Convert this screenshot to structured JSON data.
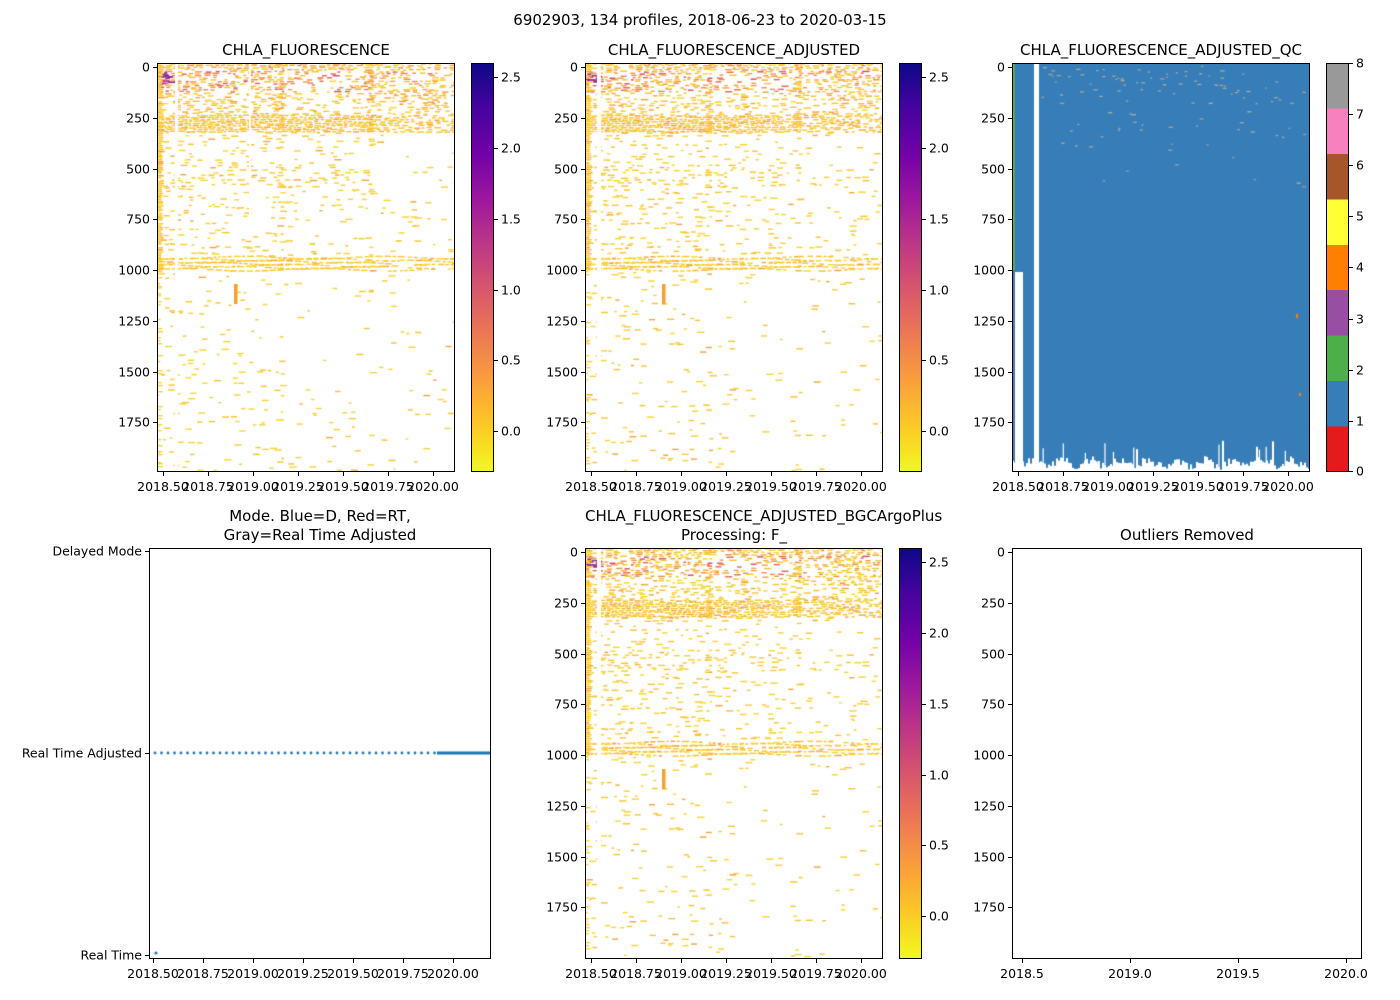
{
  "figure": {
    "suptitle": "6902903, 134 profiles, 2018-06-23 to 2020-03-15",
    "background": "#ffffff"
  },
  "palette": {
    "plasma_r_stops": [
      "#0d0887",
      "#46039f",
      "#7201a8",
      "#9c179e",
      "#bd3786",
      "#d8576b",
      "#ed7953",
      "#fb9f3a",
      "#fdc926",
      "#f0f921"
    ],
    "qc_colors": [
      "#e41a1c",
      "#377eb8",
      "#4daf4a",
      "#984ea3",
      "#ff7f00",
      "#ffff33",
      "#a65628",
      "#f781bf",
      "#999999"
    ],
    "scatter_yellow": "#fdd22f",
    "scatter_amber": "#fcc32b",
    "scatter_orange": "#f7a23a",
    "scatter_red": "#e2654f",
    "scatter_magenta": "#b23387",
    "qc_fill": "#377eb8",
    "qc_first_profile": "#4daf4a",
    "qc_speck": "#a3a39e",
    "mode_line": "#1f77b4"
  },
  "panels": {
    "fluorescence": {
      "title": "CHLA_FLUORESCENCE",
      "xticks": [
        "2018.50",
        "2018.75",
        "2019.00",
        "2019.25",
        "2019.50",
        "2019.75",
        "2020.00"
      ],
      "yticks": [
        "0",
        "250",
        "500",
        "750",
        "1000",
        "1250",
        "1500",
        "1750"
      ],
      "colorbar_ticks": [
        "2.5",
        "2.0",
        "1.5",
        "1.0",
        "0.5",
        "0.0"
      ]
    },
    "fluorescence_adjusted": {
      "title": "CHLA_FLUORESCENCE_ADJUSTED",
      "xticks": [
        "2018.50",
        "2018.75",
        "2019.00",
        "2019.25",
        "2019.50",
        "2019.75",
        "2020.00"
      ],
      "yticks": [
        "0",
        "250",
        "500",
        "750",
        "1000",
        "1250",
        "1500",
        "1750"
      ],
      "colorbar_ticks": [
        "2.5",
        "2.0",
        "1.5",
        "1.0",
        "0.5",
        "0.0"
      ]
    },
    "qc": {
      "title": "CHLA_FLUORESCENCE_ADJUSTED_QC",
      "xticks": [
        "2018.50",
        "2018.75",
        "2019.00",
        "2019.25",
        "2019.50",
        "2019.75",
        "2020.00"
      ],
      "yticks": [
        "0",
        "250",
        "500",
        "750",
        "1000",
        "1250",
        "1500",
        "1750"
      ],
      "colorbar_ticks": [
        "8",
        "7",
        "6",
        "5",
        "4",
        "3",
        "2",
        "1",
        "0"
      ]
    },
    "mode": {
      "title_line1": "Mode. Blue=D, Red=RT,",
      "title_line2": "Gray=Real Time Adjusted",
      "xticks": [
        "2018.50",
        "2018.75",
        "2019.00",
        "2019.25",
        "2019.50",
        "2019.75",
        "2020.00"
      ],
      "yticks": [
        "Delayed Mode",
        "Real Time Adjusted",
        "Real Time"
      ]
    },
    "bgc": {
      "title_line1": "CHLA_FLUORESCENCE_ADJUSTED_BGCArgoPlus",
      "title_line2": "Processing: F_",
      "xticks": [
        "2018.50",
        "2018.75",
        "2019.00",
        "2019.25",
        "2019.50",
        "2019.75",
        "2020.00"
      ],
      "yticks": [
        "0",
        "250",
        "500",
        "750",
        "1000",
        "1250",
        "1500",
        "1750"
      ],
      "colorbar_ticks": [
        "2.5",
        "2.0",
        "1.5",
        "1.0",
        "0.5",
        "0.0"
      ]
    },
    "outliers": {
      "title": "Outliers Removed",
      "xticks": [
        "2018.5",
        "2019.0",
        "2019.5",
        "2020.0"
      ],
      "yticks": [
        "0",
        "250",
        "500",
        "750",
        "1000",
        "1250",
        "1500",
        "1750"
      ]
    }
  },
  "chart_data": [
    {
      "type": "heatmap",
      "title": "CHLA_FLUORESCENCE",
      "x_range": [
        2018.47,
        2020.21
      ],
      "x_ticks": [
        2018.5,
        2018.75,
        2019.0,
        2019.25,
        2019.5,
        2019.75,
        2020.0
      ],
      "y_range": [
        0,
        1990
      ],
      "y_ticks": [
        0,
        250,
        500,
        750,
        1000,
        1250,
        1500,
        1750
      ],
      "y_inverted": true,
      "colormap": "plasma_r",
      "color_range": [
        -0.3,
        2.6
      ],
      "colorbar_ticks": [
        2.5,
        2.0,
        1.5,
        1.0,
        0.5,
        0.0
      ],
      "features": [
        {
          "depth_range": [
            0,
            150
          ],
          "value_range": [
            0.1,
            1.2
          ],
          "description": "dense surface signal, red/magenta chlorophyll maxima near 50-100 dbar, strongest at start of record"
        },
        {
          "depth_range": [
            250,
            330
          ],
          "value_range": [
            0.05,
            0.15
          ],
          "description": "continuous dense amber band across all profiles"
        },
        {
          "depth_range": [
            330,
            940
          ],
          "value_range": [
            -0.05,
            0.1
          ],
          "description": "sparse near-zero dashes, denser before mid-2019"
        },
        {
          "depth_range": [
            940,
            1000
          ],
          "value_range": [
            0.0,
            0.1
          ],
          "description": "dense band across all profiles"
        },
        {
          "depth_range": [
            1000,
            1990
          ],
          "value_range": [
            -0.05,
            0.05
          ],
          "description": "very sparse near-zero dashes, large empty region mid-2019 between 1050 and 1500 dbar"
        },
        {
          "time": 2018.85,
          "depth_range": [
            1070,
            1170
          ],
          "value_range": [
            0.8,
            1.0
          ],
          "description": "isolated orange spike"
        }
      ],
      "data_gaps": [
        2018.56,
        2018.63
      ]
    },
    {
      "type": "heatmap",
      "title": "CHLA_FLUORESCENCE_ADJUSTED",
      "x_range": [
        2018.47,
        2020.21
      ],
      "y_range": [
        0,
        1990
      ],
      "colormap": "plasma_r",
      "color_range": [
        -0.3,
        2.6
      ],
      "colorbar_ticks": [
        2.5,
        2.0,
        1.5,
        1.0,
        0.5,
        0.0
      ],
      "description": "same structure as CHLA_FLUORESCENCE",
      "data_gaps": [
        2018.56
      ]
    },
    {
      "type": "heatmap",
      "title": "CHLA_FLUORESCENCE_ADJUSTED_QC",
      "x_range": [
        2018.47,
        2020.21
      ],
      "y_range": [
        0,
        1990
      ],
      "categories": [
        0,
        1,
        2,
        3,
        4,
        5,
        6,
        7,
        8
      ],
      "category_colors": [
        "#e41a1c",
        "#377eb8",
        "#4daf4a",
        "#984ea3",
        "#ff7f00",
        "#ffff33",
        "#a65628",
        "#f781bf",
        "#999999"
      ],
      "dominant_value": 1,
      "features": [
        {
          "description": "QC=1 (blue) for nearly all points down to ~1950 dbar with ragged bottom edge"
        },
        {
          "description": "QC=8 (gray) specks scattered above ~400 dbar"
        },
        {
          "description": "QC=2 (green) thin strip for the first profile, 0-1000 dbar"
        },
        {
          "description": "first profiles reach only ~1000 dbar"
        },
        {
          "description": "white data gap near 2018.6"
        }
      ]
    },
    {
      "type": "line",
      "title": "Mode. Blue=D, Red=RT, Gray=Real Time Adjusted",
      "x_range": [
        2018.48,
        2020.19
      ],
      "y_categories": [
        "Real Time",
        "Real Time Adjusted",
        "Delayed Mode"
      ],
      "series": [
        {
          "name": "profile mode",
          "color": "#1f77b4",
          "description": "first profile at Real Time (~2018.48); all remaining 133 profiles at Real Time Adjusted; markers spaced ~5 days until ~2019.8 then continuous"
        }
      ]
    },
    {
      "type": "heatmap",
      "title": "CHLA_FLUORESCENCE_ADJUSTED_BGCArgoPlus Processing: F_",
      "x_range": [
        2018.47,
        2020.21
      ],
      "y_range": [
        0,
        1990
      ],
      "colormap": "plasma_r",
      "color_range": [
        -0.3,
        2.6
      ],
      "colorbar_ticks": [
        2.5,
        2.0,
        1.5,
        1.0,
        0.5,
        0.0
      ],
      "description": "same structure as CHLA_FLUORESCENCE_ADJUSTED",
      "data_gaps": [
        2018.56
      ]
    },
    {
      "type": "scatter",
      "title": "Outliers Removed",
      "x_range": [
        2018.5,
        2020.0
      ],
      "y_range": [
        0,
        1990
      ],
      "points": []
    }
  ]
}
